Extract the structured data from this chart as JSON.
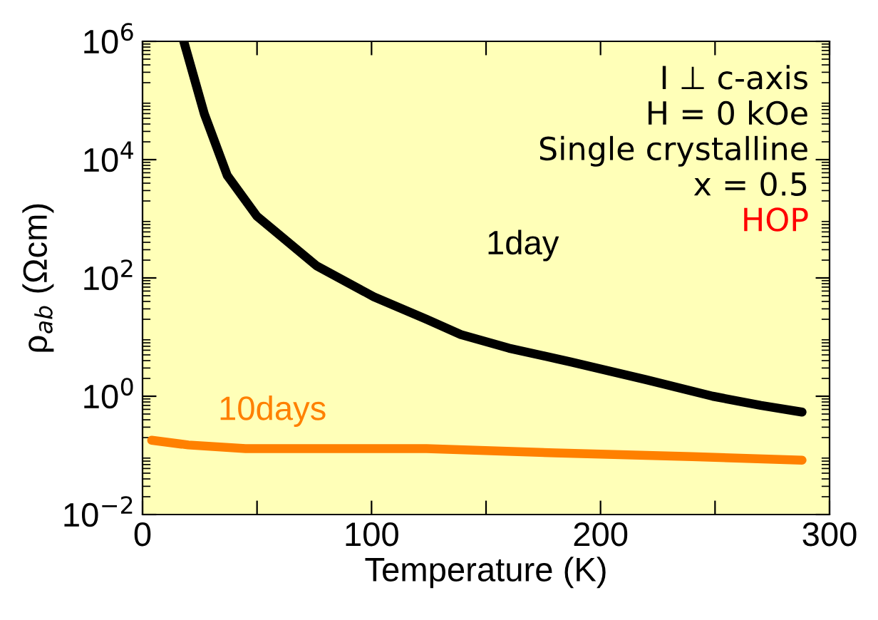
{
  "chart_data": {
    "type": "line",
    "xlabel": "Temperature (K)",
    "ylabel": "ρ$_{ab}$ (Ωcm)",
    "log": "y",
    "grid": false,
    "legend": false,
    "marker": "none",
    "line_style": "solid",
    "xlim": [
      0,
      300
    ],
    "xticks": [
      0,
      {
        "value": 50,
        "label": null
      },
      100,
      {
        "value": 150,
        "label": null
      },
      200,
      {
        "value": 250,
        "label": null
      },
      300
    ],
    "ylim": [
      0.01,
      1000000
    ],
    "yticks": [
      {
        "value": 0.01,
        "label": "10$^{−2}$"
      },
      {
        "value": 1,
        "label": "10$^{0}$"
      },
      {
        "value": 100,
        "label": "10$^{2}$"
      },
      {
        "value": 10000,
        "label": "10$^{4}$"
      },
      {
        "value": 1000000,
        "label": "10$^{6}$"
      }
    ],
    "series": [
      {
        "name": "1day",
        "color": "#000000",
        "x": [
          18,
          27,
          37,
          50,
          76,
          101,
          124,
          139,
          160,
          187,
          220,
          249,
          270,
          288
        ],
        "values": [
          1000000,
          59000,
          5400,
          1100,
          160,
          48,
          20,
          11,
          6.5,
          3.8,
          1.9,
          1.0,
          0.7,
          0.54
        ]
      },
      {
        "name": "10days",
        "color": "#ff8000",
        "x": [
          4,
          20,
          45,
          80,
          124,
          180,
          240,
          288
        ],
        "values": [
          0.18,
          0.15,
          0.13,
          0.13,
          0.13,
          0.11,
          0.095,
          0.083
        ]
      }
    ],
    "annotations": [
      "I ⊥ c-axis",
      "H = 0 kOe",
      "Single crystalline",
      "x = 0.5",
      "HOP"
    ]
  }
}
